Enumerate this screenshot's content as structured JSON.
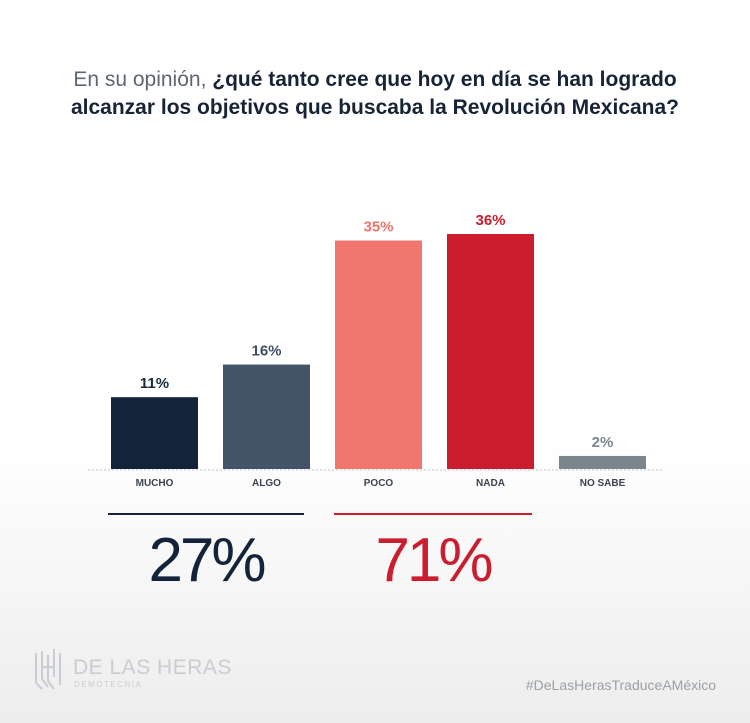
{
  "title": {
    "lead": "En su opinión,",
    "question": "¿qué tanto cree que hoy en día se han logrado alcanzar los objetivos que buscaba la Revolución Mexicana?"
  },
  "chart_data": {
    "type": "bar",
    "categories": [
      "MUCHO",
      "ALGO",
      "POCO",
      "NADA",
      "NO SABE"
    ],
    "values": [
      11,
      16,
      35,
      36,
      2
    ],
    "value_labels": [
      "11%",
      "16%",
      "35%",
      "36%",
      "2%"
    ],
    "colors": [
      "#13233a",
      "#435468",
      "#ef776d",
      "#cb1d2e",
      "#7d858d"
    ],
    "label_colors": [
      "#1b2a3c",
      "#3f4f62",
      "#ef776d",
      "#cb1d2e",
      "#7d858d"
    ],
    "title": "En su opinión, ¿qué tanto cree que hoy en día se han logrado alcanzar los objetivos que buscaba la Revolución Mexicana?",
    "xlabel": "",
    "ylabel": "",
    "ylim": [
      0,
      36
    ]
  },
  "summary": [
    {
      "value": "27%",
      "color": "#13233a"
    },
    {
      "value": "71%",
      "color": "#cb1d2e"
    }
  ],
  "footer": {
    "logo_name": "DE LAS HERAS",
    "logo_sub": "DEMOTECNIA",
    "hashtag": "#DeLasHerasTraduceAMéxico"
  }
}
